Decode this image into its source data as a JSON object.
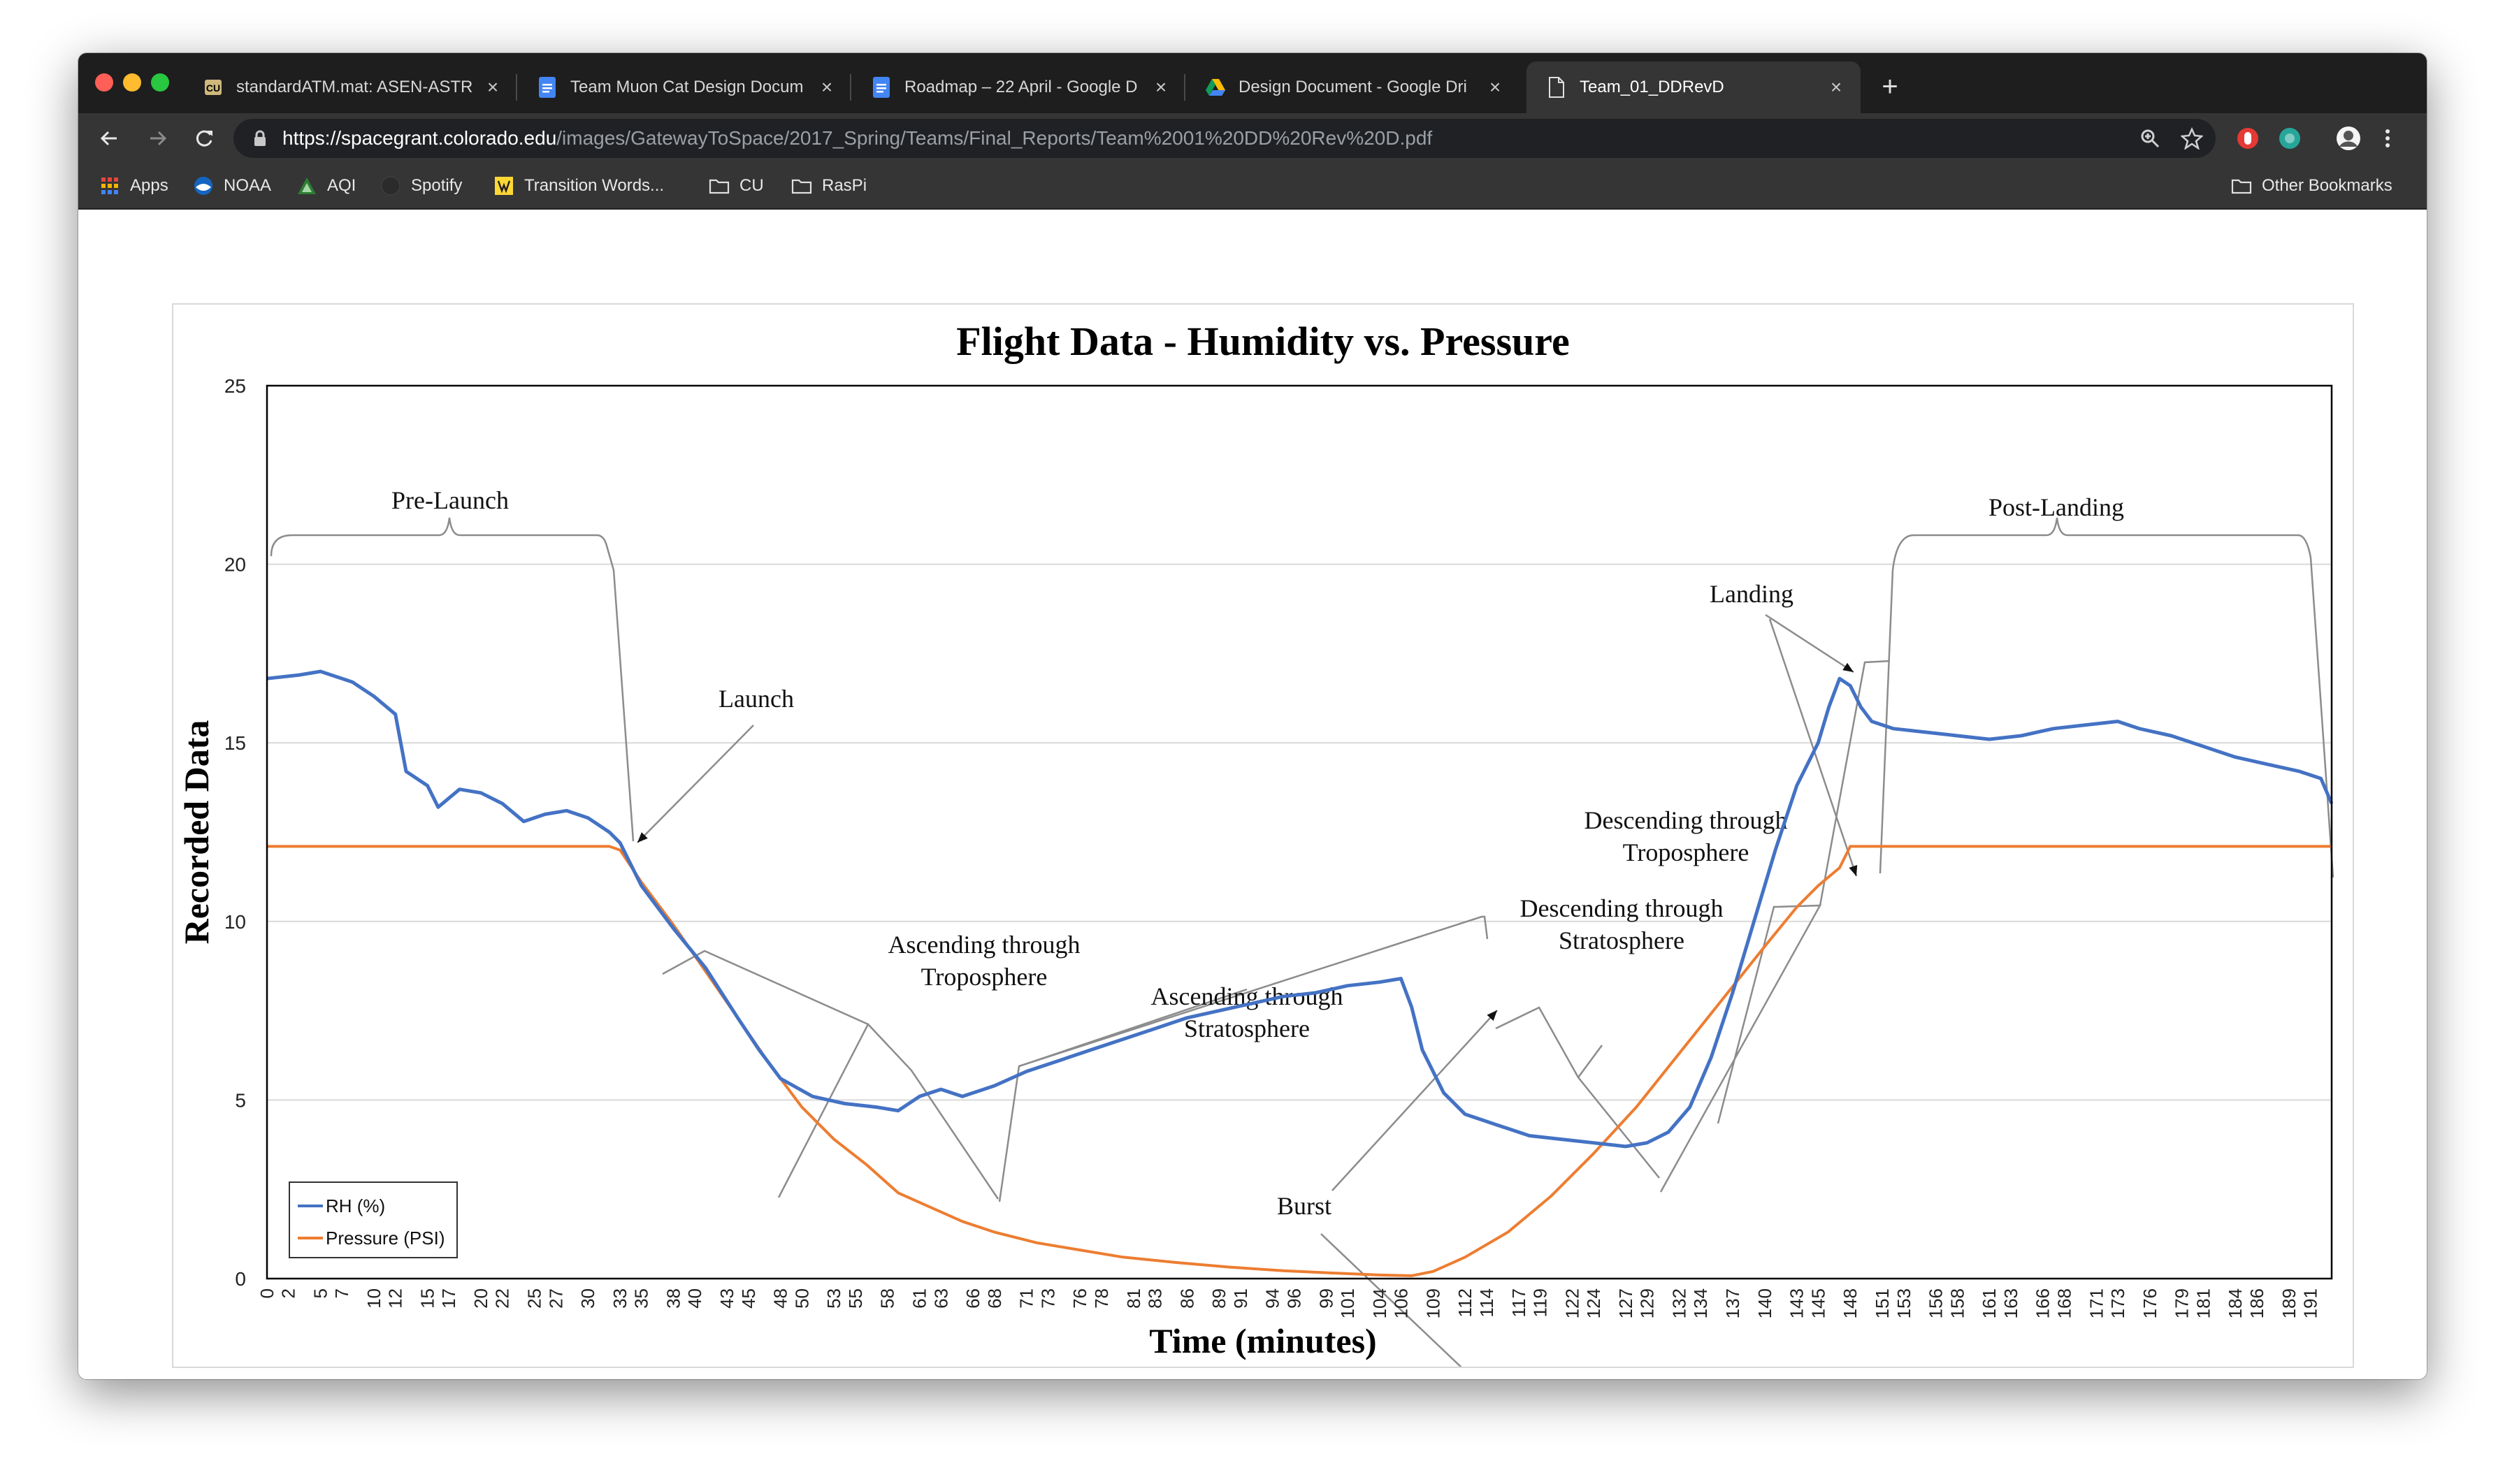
{
  "browser": {
    "tabs": [
      {
        "title": "standardATM.mat: ASEN-ASTR",
        "icon": "cu-logo-icon",
        "active": false
      },
      {
        "title": "Team Muon Cat Design Docum",
        "icon": "google-docs-icon",
        "active": false
      },
      {
        "title": "Roadmap – 22 April - Google D",
        "icon": "google-docs-icon",
        "active": false
      },
      {
        "title": "Design Document - Google Dri",
        "icon": "google-drive-icon",
        "active": false
      },
      {
        "title": "Team_01_DDRevD",
        "icon": "document-icon",
        "active": true
      }
    ],
    "url_host": "https://spacegrant.colorado.edu",
    "url_path": "/images/GatewayToSpace/2017_Spring/Teams/Final_Reports/Team%2001%20DD%20Rev%20D.pdf",
    "bookmarks": [
      {
        "label": "Apps",
        "icon": "apps-grid-icon"
      },
      {
        "label": "NOAA",
        "icon": "noaa-icon"
      },
      {
        "label": "AQI",
        "icon": "aqi-icon"
      },
      {
        "label": "Spotify",
        "icon": "spotify-icon"
      },
      {
        "label": "Transition Words...",
        "icon": "bookmark-favicon-icon"
      },
      {
        "label": "CU",
        "icon": "folder-icon"
      },
      {
        "label": "RasPi",
        "icon": "folder-icon"
      }
    ],
    "other_bookmarks": "Other Bookmarks"
  },
  "chart_data": {
    "type": "line",
    "title": "Flight Data - Humidity vs. Pressure",
    "xlabel": "Time (minutes)",
    "ylabel": "Recorded Data",
    "ylim": [
      0,
      25
    ],
    "xlim": [
      0,
      193
    ],
    "yticks": [
      0,
      5,
      10,
      15,
      20,
      25
    ],
    "xticks": [
      0,
      2,
      5,
      7,
      10,
      12,
      15,
      17,
      20,
      22,
      25,
      27,
      30,
      33,
      35,
      38,
      40,
      43,
      45,
      48,
      50,
      53,
      55,
      58,
      61,
      63,
      66,
      68,
      71,
      73,
      76,
      78,
      81,
      83,
      86,
      89,
      91,
      94,
      96,
      99,
      101,
      104,
      106,
      109,
      112,
      114,
      117,
      119,
      122,
      124,
      127,
      129,
      132,
      134,
      137,
      140,
      143,
      145,
      148,
      151,
      153,
      156,
      158,
      161,
      163,
      166,
      168,
      171,
      173,
      176,
      179,
      181,
      184,
      186,
      189,
      191
    ],
    "grid": "horizontal",
    "legend_position": "bottom-left",
    "series": [
      {
        "name": "RH (%)",
        "color": "#4472C4",
        "points": [
          [
            0,
            16.8
          ],
          [
            3,
            16.9
          ],
          [
            5,
            17.0
          ],
          [
            8,
            16.7
          ],
          [
            10,
            16.3
          ],
          [
            12,
            15.8
          ],
          [
            13,
            14.2
          ],
          [
            15,
            13.8
          ],
          [
            16,
            13.2
          ],
          [
            18,
            13.7
          ],
          [
            20,
            13.6
          ],
          [
            22,
            13.3
          ],
          [
            24,
            12.8
          ],
          [
            26,
            13.0
          ],
          [
            28,
            13.1
          ],
          [
            30,
            12.9
          ],
          [
            32,
            12.5
          ],
          [
            33,
            12.2
          ],
          [
            35,
            11.0
          ],
          [
            38,
            9.8
          ],
          [
            41,
            8.7
          ],
          [
            44,
            7.3
          ],
          [
            46,
            6.4
          ],
          [
            48,
            5.6
          ],
          [
            51,
            5.1
          ],
          [
            54,
            4.9
          ],
          [
            57,
            4.8
          ],
          [
            59,
            4.7
          ],
          [
            61,
            5.1
          ],
          [
            63,
            5.3
          ],
          [
            65,
            5.1
          ],
          [
            68,
            5.4
          ],
          [
            71,
            5.8
          ],
          [
            74,
            6.1
          ],
          [
            77,
            6.4
          ],
          [
            80,
            6.7
          ],
          [
            83,
            7.0
          ],
          [
            86,
            7.3
          ],
          [
            89,
            7.5
          ],
          [
            92,
            7.7
          ],
          [
            95,
            7.9
          ],
          [
            98,
            8.0
          ],
          [
            101,
            8.2
          ],
          [
            104,
            8.3
          ],
          [
            106,
            8.4
          ],
          [
            107,
            7.6
          ],
          [
            108,
            6.4
          ],
          [
            110,
            5.2
          ],
          [
            112,
            4.6
          ],
          [
            115,
            4.3
          ],
          [
            118,
            4.0
          ],
          [
            121,
            3.9
          ],
          [
            124,
            3.8
          ],
          [
            127,
            3.7
          ],
          [
            129,
            3.8
          ],
          [
            131,
            4.1
          ],
          [
            133,
            4.8
          ],
          [
            135,
            6.2
          ],
          [
            137,
            8.0
          ],
          [
            139,
            10.0
          ],
          [
            141,
            12.0
          ],
          [
            143,
            13.8
          ],
          [
            145,
            15.0
          ],
          [
            146,
            16.0
          ],
          [
            147,
            16.8
          ],
          [
            148,
            16.6
          ],
          [
            149,
            16.0
          ],
          [
            150,
            15.6
          ],
          [
            152,
            15.4
          ],
          [
            155,
            15.3
          ],
          [
            158,
            15.2
          ],
          [
            161,
            15.1
          ],
          [
            164,
            15.2
          ],
          [
            167,
            15.4
          ],
          [
            170,
            15.5
          ],
          [
            173,
            15.6
          ],
          [
            175,
            15.4
          ],
          [
            178,
            15.2
          ],
          [
            181,
            14.9
          ],
          [
            184,
            14.6
          ],
          [
            187,
            14.4
          ],
          [
            190,
            14.2
          ],
          [
            192,
            14.0
          ],
          [
            193,
            13.3
          ]
        ]
      },
      {
        "name": "Pressure (PSI)",
        "color": "#ED7D31",
        "points": [
          [
            0,
            12.1
          ],
          [
            32,
            12.1
          ],
          [
            33,
            12.0
          ],
          [
            35,
            11.1
          ],
          [
            38,
            9.9
          ],
          [
            41,
            8.6
          ],
          [
            44,
            7.3
          ],
          [
            47,
            6.0
          ],
          [
            50,
            4.8
          ],
          [
            53,
            3.9
          ],
          [
            56,
            3.2
          ],
          [
            59,
            2.4
          ],
          [
            62,
            2.0
          ],
          [
            65,
            1.6
          ],
          [
            68,
            1.3
          ],
          [
            72,
            1.0
          ],
          [
            76,
            0.8
          ],
          [
            80,
            0.6
          ],
          [
            85,
            0.45
          ],
          [
            90,
            0.32
          ],
          [
            95,
            0.22
          ],
          [
            100,
            0.15
          ],
          [
            104,
            0.1
          ],
          [
            107,
            0.08
          ],
          [
            109,
            0.2
          ],
          [
            112,
            0.6
          ],
          [
            116,
            1.3
          ],
          [
            120,
            2.3
          ],
          [
            124,
            3.5
          ],
          [
            128,
            4.8
          ],
          [
            132,
            6.3
          ],
          [
            136,
            7.8
          ],
          [
            140,
            9.3
          ],
          [
            143,
            10.4
          ],
          [
            145,
            11.0
          ],
          [
            147,
            11.5
          ],
          [
            148,
            12.1
          ],
          [
            150,
            12.1
          ],
          [
            193,
            12.1
          ]
        ]
      }
    ],
    "annotations": [
      {
        "text": "Pre-Launch"
      },
      {
        "text": "Launch"
      },
      {
        "text": "Ascending through Troposphere"
      },
      {
        "text": "Ascending through Stratosphere"
      },
      {
        "text": "Burst"
      },
      {
        "text": "Descending through Stratosphere"
      },
      {
        "text": "Descending through Troposphere"
      },
      {
        "text": "Landing"
      },
      {
        "text": "Post-Landing"
      }
    ]
  }
}
